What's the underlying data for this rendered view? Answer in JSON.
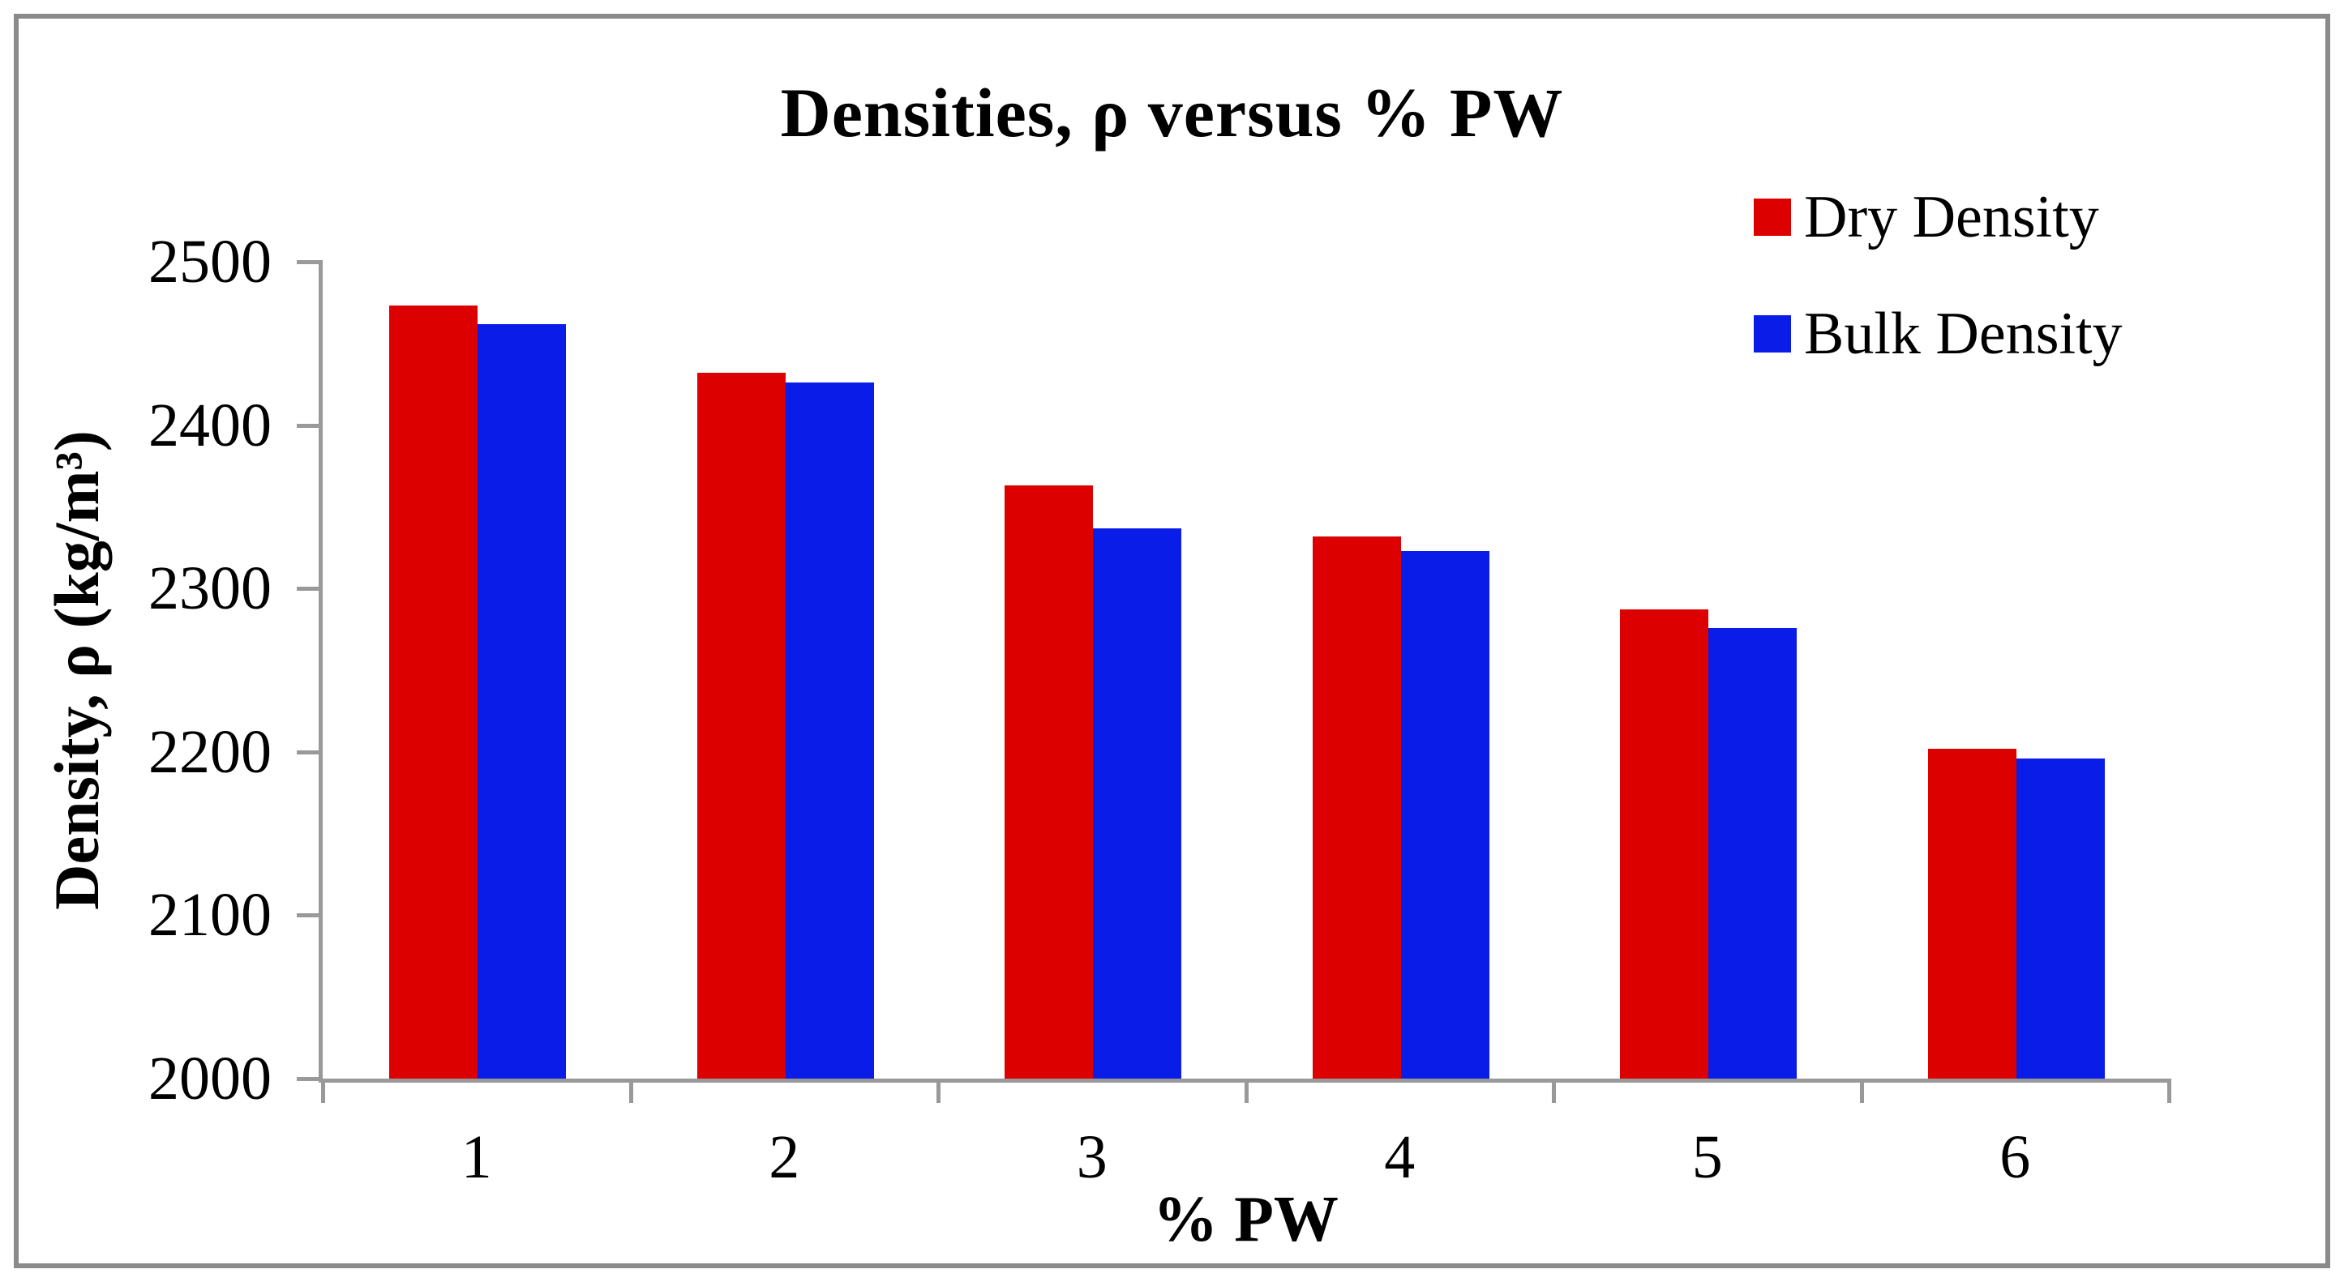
{
  "frame": {
    "border_color": "#8A8A8A",
    "background": "#FFFFFF"
  },
  "axis": {
    "line_color": "#999999",
    "text_color": "#000000"
  },
  "chart_data": {
    "type": "bar",
    "title": "Densities, ρ versus % PW",
    "xlabel": "% PW",
    "ylabel": "Density, ρ (kg/m³)",
    "categories": [
      "1",
      "2",
      "3",
      "4",
      "5",
      "6"
    ],
    "series": [
      {
        "name": "Dry Density",
        "color": "#DD0000",
        "values": [
          2473,
          2432,
          2363,
          2332,
          2287,
          2202
        ]
      },
      {
        "name": "Bulk Density",
        "color": "#0A1DE8",
        "values": [
          2462,
          2426,
          2337,
          2323,
          2276,
          2196
        ]
      }
    ],
    "ylim": [
      2000,
      2500
    ],
    "yticks": [
      2000,
      2100,
      2200,
      2300,
      2400,
      2500
    ],
    "grid": "off",
    "legend_position": "top-right"
  }
}
